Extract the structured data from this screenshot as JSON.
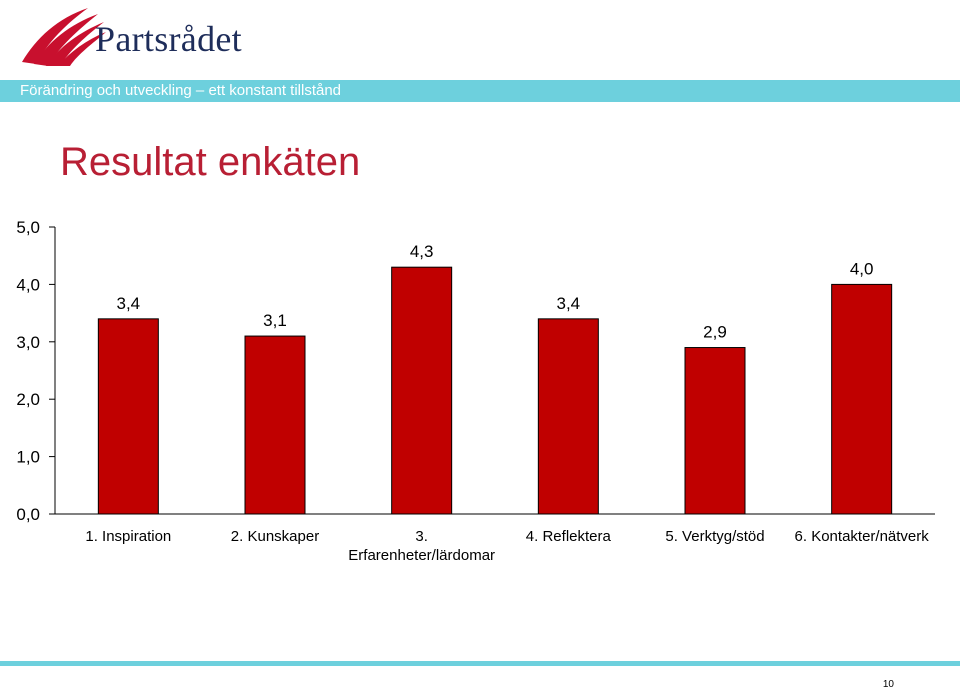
{
  "brand": {
    "name": "Partsrådet"
  },
  "banner": {
    "text": "Förändring och utveckling – ett konstant tillstånd"
  },
  "slide": {
    "title": "Resultat enkäten",
    "page_number": "10"
  },
  "colors": {
    "bar": "#c00000",
    "title": "#b81f34",
    "banner": "#6dd0dd",
    "brand_text": "#1e2d5a"
  },
  "chart_data": {
    "type": "bar",
    "categories": [
      [
        "1. Inspiration"
      ],
      [
        "2. Kunskaper"
      ],
      [
        "3.",
        "Erfarenheter/lärdomar"
      ],
      [
        "4. Reflektera"
      ],
      [
        "5. Verktyg/stöd"
      ],
      [
        "6. Kontakter/nätverk"
      ]
    ],
    "values": [
      3.4,
      3.1,
      4.3,
      3.4,
      2.9,
      4.0
    ],
    "value_labels": [
      "3,4",
      "3,1",
      "4,3",
      "3,4",
      "2,9",
      "4,0"
    ],
    "ylim": [
      0,
      5
    ],
    "yticks": [
      "0,0",
      "1,0",
      "2,0",
      "3,0",
      "4,0",
      "5,0"
    ],
    "grid": false,
    "xlabel": "",
    "ylabel": ""
  }
}
